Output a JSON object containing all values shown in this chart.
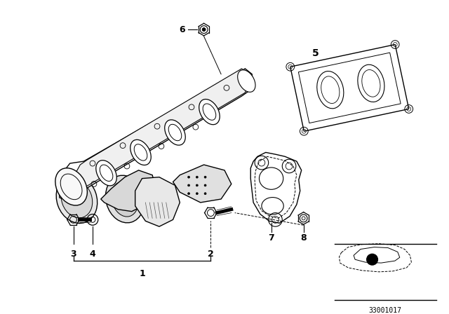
{
  "bg_color": "#ffffff",
  "line_color": "#000000",
  "diagram_id": "33001017",
  "fig_width": 6.4,
  "fig_height": 4.48,
  "dpi": 100
}
